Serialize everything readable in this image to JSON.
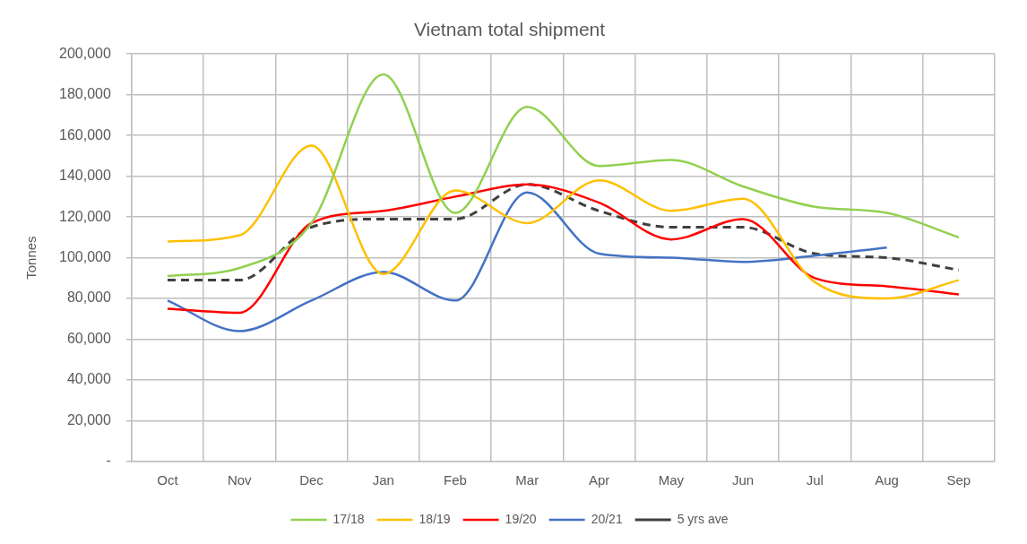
{
  "chart_data": {
    "type": "line",
    "title": "Vietnam total shipment",
    "ylabel": "Tonnes",
    "categories": [
      "Oct",
      "Nov",
      "Dec",
      "Jan",
      "Feb",
      "Mar",
      "Apr",
      "May",
      "Jun",
      "Jul",
      "Aug",
      "Sep"
    ],
    "series": [
      {
        "name": "17/18",
        "color": "#92d050",
        "values": [
          91000,
          95000,
          117000,
          190000,
          122000,
          174000,
          145000,
          148000,
          135000,
          125000,
          122000,
          110000
        ]
      },
      {
        "name": "18/19",
        "color": "#ffc000",
        "values": [
          108000,
          111000,
          155000,
          92000,
          133000,
          117000,
          138000,
          123000,
          129000,
          88000,
          80000,
          89000
        ]
      },
      {
        "name": "19/20",
        "color": "#ff0000",
        "values": [
          75000,
          73000,
          117000,
          123000,
          130000,
          136000,
          127000,
          109000,
          119000,
          90000,
          86000,
          82000
        ]
      },
      {
        "name": "20/21",
        "color": "#4472c4",
        "values": [
          79000,
          64000,
          79000,
          93000,
          79000,
          132000,
          102000,
          100000,
          98000,
          101000,
          105000,
          null
        ]
      },
      {
        "name": "5 yrs ave",
        "color": "#404040",
        "line_style": "dashed",
        "values": [
          89000,
          89000,
          115000,
          119000,
          119000,
          136000,
          123000,
          115000,
          115000,
          102000,
          100000,
          94000
        ]
      }
    ],
    "ylim": [
      0,
      200000
    ],
    "yticks": [
      {
        "value": 0,
        "label": "-"
      },
      {
        "value": 20000,
        "label": "20,000"
      },
      {
        "value": 40000,
        "label": "40,000"
      },
      {
        "value": 60000,
        "label": "60,000"
      },
      {
        "value": 80000,
        "label": "80,000"
      },
      {
        "value": 100000,
        "label": "100,000"
      },
      {
        "value": 120000,
        "label": "120,000"
      },
      {
        "value": 140000,
        "label": "140,000"
      },
      {
        "value": 160000,
        "label": "160,000"
      },
      {
        "value": 180000,
        "label": "180,000"
      },
      {
        "value": 200000,
        "label": "200,000"
      }
    ],
    "grid": true,
    "legend": "bottom",
    "marker": "none",
    "line_style": "solid"
  }
}
